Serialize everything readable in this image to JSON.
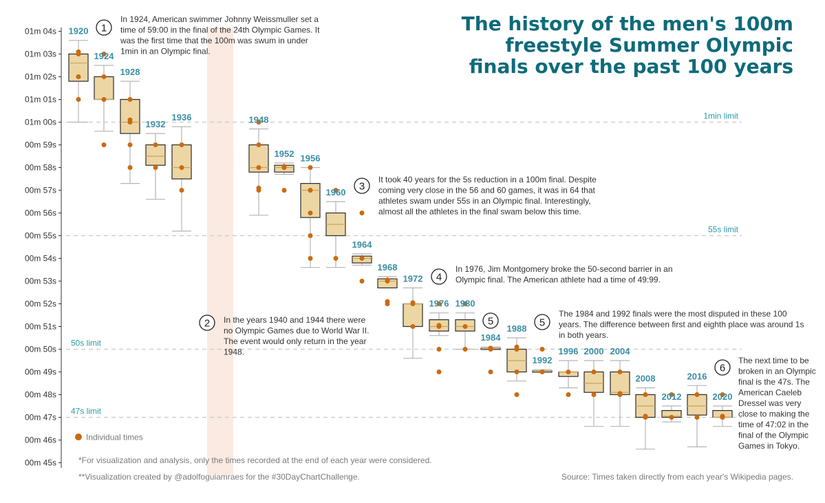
{
  "chart_data": {
    "type": "boxplot",
    "title_lines": [
      "The history of the men's 100m",
      "freestyle Summer Olympic",
      "finals over the past 100 years"
    ],
    "y_ticks": [
      "01m 04s",
      "01m 03s",
      "01m 02s",
      "01m 01s",
      "01m 00s",
      "00m 59s",
      "00m 58s",
      "00m 57s",
      "00m 56s",
      "00m 55s",
      "00m 54s",
      "00m 53s",
      "00m 52s",
      "00m 51s",
      "00m 50s",
      "00m 49s",
      "00m 48s",
      "00m 47s",
      "00m 46s",
      "00m 45s"
    ],
    "ylim": [
      45,
      64
    ],
    "limits": [
      {
        "value": 60,
        "label": "1min limit"
      },
      {
        "value": 55,
        "label": "55s limit"
      },
      {
        "value": 50,
        "label": "50s limit"
      },
      {
        "value": 47,
        "label": "47s limit"
      }
    ],
    "games": [
      {
        "year": "1920",
        "min": 60.0,
        "q1": 61.8,
        "median": 62.6,
        "q3": 63.0,
        "max": 63.6,
        "points": [
          61.0,
          62.0,
          63.0,
          63.1
        ]
      },
      {
        "year": "1924",
        "min": 59.6,
        "q1": 61.0,
        "median": 61.0,
        "q3": 62.0,
        "max": 62.5,
        "points": [
          59.0,
          61.0,
          62.0,
          63.0
        ]
      },
      {
        "year": "1928",
        "min": 57.3,
        "q1": 59.5,
        "median": 60.0,
        "q3": 61.0,
        "max": 61.8,
        "points": [
          58.0,
          59.0,
          60.0,
          60.1,
          61.0
        ]
      },
      {
        "year": "1932",
        "min": 56.6,
        "q1": 58.1,
        "median": 58.5,
        "q3": 59.0,
        "max": 59.5,
        "points": [
          58.0,
          59.0
        ]
      },
      {
        "year": "1936",
        "min": 55.2,
        "q1": 57.5,
        "median": 58.0,
        "q3": 59.0,
        "max": 59.8,
        "points": [
          57.0,
          58.0,
          59.0
        ]
      },
      {
        "year": "1948",
        "min": 55.9,
        "q1": 57.8,
        "median": 58.0,
        "q3": 59.0,
        "max": 59.7,
        "points": [
          57.0,
          57.1,
          58.0,
          59.0,
          60.0
        ]
      },
      {
        "year": "1952",
        "min": 57.7,
        "q1": 57.8,
        "median": 58.0,
        "q3": 58.1,
        "max": 58.2,
        "points": [
          57.0,
          58.0,
          58.05
        ]
      },
      {
        "year": "1956",
        "min": 53.6,
        "q1": 55.8,
        "median": 57.0,
        "q3": 57.3,
        "max": 58.0,
        "points": [
          54.0,
          55.0,
          56.0,
          57.0,
          58.0
        ]
      },
      {
        "year": "1960",
        "min": 53.6,
        "q1": 55.0,
        "median": 55.5,
        "q3": 56.0,
        "max": 56.5,
        "points": [
          54.0,
          57.0
        ]
      },
      {
        "year": "1964",
        "min": 53.7,
        "q1": 53.8,
        "median": 54.0,
        "q3": 54.1,
        "max": 54.2,
        "points": [
          53.0,
          54.0,
          56.0
        ]
      },
      {
        "year": "1968",
        "min": 52.7,
        "q1": 52.7,
        "median": 53.0,
        "q3": 53.1,
        "max": 53.2,
        "points": [
          52.0,
          52.1,
          53.0,
          53.05
        ]
      },
      {
        "year": "1972",
        "min": 49.6,
        "q1": 51.0,
        "median": 52.0,
        "q3": 52.0,
        "max": 52.7,
        "points": [
          51.0,
          52.0,
          52.05
        ]
      },
      {
        "year": "1976",
        "min": 50.6,
        "q1": 50.8,
        "median": 51.0,
        "q3": 51.3,
        "max": 51.6,
        "points": [
          49.0,
          50.0,
          51.0,
          51.05,
          52.0
        ]
      },
      {
        "year": "1980",
        "min": 50.0,
        "q1": 50.8,
        "median": 51.0,
        "q3": 51.3,
        "max": 51.6,
        "points": [
          50.0,
          51.0,
          52.0
        ]
      },
      {
        "year": "1984",
        "min": 50.0,
        "q1": 50.0,
        "median": 50.05,
        "q3": 50.05,
        "max": 50.1,
        "points": [
          49.0,
          50.0,
          50.05
        ]
      },
      {
        "year": "1988",
        "min": 48.6,
        "q1": 49.0,
        "median": 49.5,
        "q3": 50.0,
        "max": 50.5,
        "points": [
          48.0,
          49.0,
          50.0,
          50.1
        ]
      },
      {
        "year": "1992",
        "min": 49.0,
        "q1": 49.0,
        "median": 49.05,
        "q3": 49.05,
        "max": 49.1,
        "points": [
          49.0,
          50.0
        ]
      },
      {
        "year": "1996",
        "min": 48.3,
        "q1": 48.8,
        "median": 49.0,
        "q3": 49.0,
        "max": 49.5,
        "points": [
          48.0,
          49.0
        ]
      },
      {
        "year": "2000",
        "min": 46.6,
        "q1": 48.1,
        "median": 48.5,
        "q3": 49.0,
        "max": 49.5,
        "points": [
          48.0,
          49.0
        ]
      },
      {
        "year": "2004",
        "min": 46.6,
        "q1": 48.0,
        "median": 48.1,
        "q3": 49.0,
        "max": 49.5,
        "points": [
          48.0,
          48.05,
          49.0
        ]
      },
      {
        "year": "2008",
        "min": 45.6,
        "q1": 47.0,
        "median": 47.5,
        "q3": 48.0,
        "max": 48.3,
        "points": [
          47.0,
          47.05,
          48.0
        ]
      },
      {
        "year": "2012",
        "min": 46.8,
        "q1": 47.0,
        "median": 47.05,
        "q3": 47.3,
        "max": 47.5,
        "points": [
          47.0,
          48.0
        ]
      },
      {
        "year": "2016",
        "min": 45.7,
        "q1": 47.1,
        "median": 47.5,
        "q3": 48.0,
        "max": 48.4,
        "points": [
          47.0,
          48.0
        ]
      },
      {
        "year": "2020",
        "min": 46.6,
        "q1": 47.0,
        "median": 47.0,
        "q3": 47.3,
        "max": 47.5,
        "points": [
          47.0,
          47.05,
          48.0
        ]
      }
    ],
    "gap_years": [
      "1940",
      "1944"
    ],
    "annotations": [
      {
        "number": "1",
        "lines": [
          "In 1924, American swimmer Johnny Weissmuller set a",
          "time of 59:00 in the final of the 24th Olympic Games. It",
          "was the first time that the 100m was swum in under",
          "1min in an Olympic final."
        ]
      },
      {
        "number": "2",
        "lines": [
          "In the years 1940 and 1944 there were",
          "no Olympic Games due to World War II.",
          "The event would only return in the year",
          "1948."
        ]
      },
      {
        "number": "3",
        "lines": [
          "It took 40 years for the 5s reduction in a 100m final. Despite",
          "coming very close in the 56 and 60 games, it was in 64 that",
          "athletes swam under 55s in an Olympic final. Interestingly,",
          "almost all the athletes in the final swam below this time."
        ]
      },
      {
        "number": "4",
        "lines": [
          "In 1976, Jim Montgomery broke the 50-second barrier in an",
          "Olympic final. The American athlete had a time of 49:99."
        ]
      },
      {
        "number": "5",
        "lines": []
      },
      {
        "number": "5",
        "lines": [
          "The 1984 and 1992 finals were the most disputed in these 100",
          "years. The difference between first and eighth place was around 1s",
          "in both years."
        ]
      },
      {
        "number": "6",
        "lines": [
          "The next time to be",
          "broken in an Olympic",
          "final is the 47s. The",
          "American Caeleb",
          "Dressel was very",
          "close to making the",
          "time of 47:02 in the",
          "final of the Olympic",
          "Games in Tokyo."
        ]
      }
    ],
    "legend": "Individual times",
    "footnotes": [
      "*For visualization and analysis, only the times recorded at the end of each year were considered.",
      "**Visualization created by @adolfoguiamraes for the #30DayChartChallenge."
    ],
    "source": "Source: Times taken directly from each year's Wikipedia pages.",
    "colors": {
      "title": "#0e6b7b",
      "year_label": "#3b8fa5",
      "limit_text": "#2b9aa8",
      "limit_line": "#c9c9c9",
      "box_fill": "#ecd6a4",
      "box_stroke": "#2b2b2b",
      "median": "#c9a35c",
      "whisker": "#b5b5b5",
      "point": "#cc6a10",
      "gap_band": "#faeae1",
      "text": "#333333",
      "muted": "#7a7a7a"
    }
  }
}
